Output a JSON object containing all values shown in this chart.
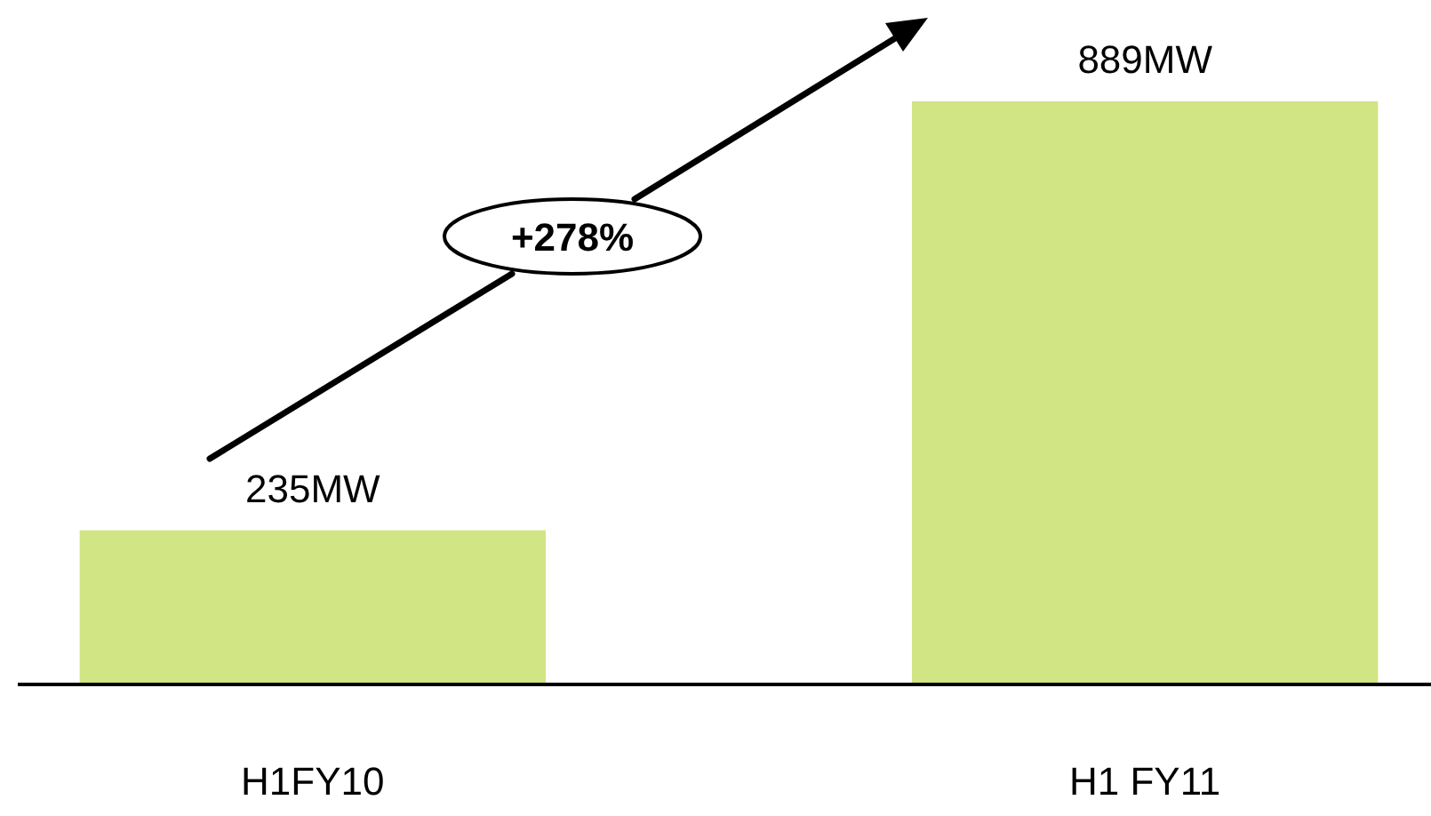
{
  "chart_data": {
    "type": "bar",
    "categories": [
      "H1FY10",
      "H1 FY11"
    ],
    "values": [
      235,
      889
    ],
    "value_labels": [
      "235MW",
      "889MW"
    ],
    "color": "#d1e585",
    "annotations": [
      "+278%"
    ]
  }
}
